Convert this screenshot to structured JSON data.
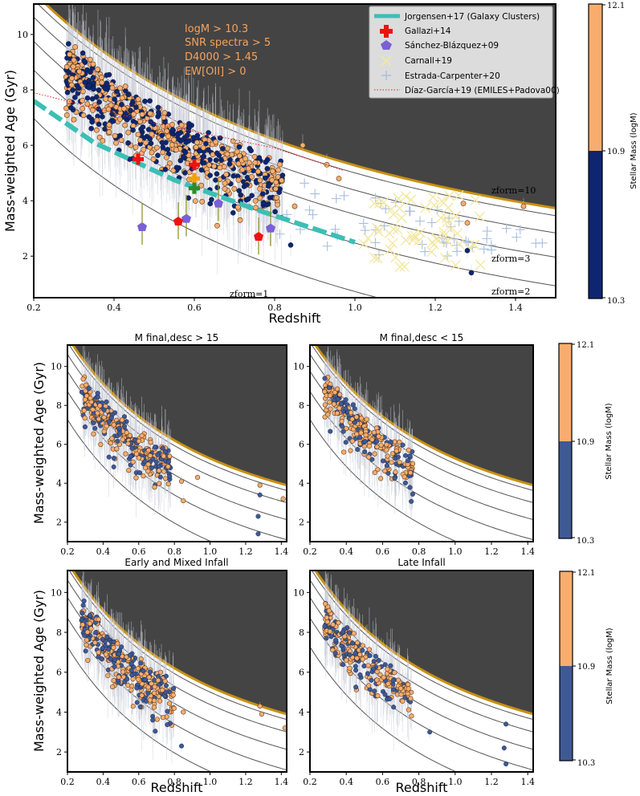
{
  "colors": {
    "high_mass": "#f8ad6e",
    "low_mass_top": "#0e2670",
    "low_mass_bottom": "#3f5994",
    "upper_region": "#444444",
    "upper_edge": "#c89010",
    "jorgensen": "#3cbfb4",
    "gallazzi": "#ee1111",
    "sanchez": "#7a5fd6",
    "carnall": "#f3e7a0",
    "estrada": "#a8bedf",
    "diaz": "#dd2222"
  },
  "chart_data": [
    {
      "id": "main",
      "type": "scatter",
      "xlabel": "Redshift",
      "ylabel": "Mass-weighted Age (Gyr)",
      "xlim": [
        0.2,
        1.5
      ],
      "ylim": [
        0.5,
        11.1
      ],
      "xticks": [
        "0.2",
        "0.4",
        "0.6",
        "0.8",
        "1.0",
        "1.2",
        "1.4"
      ],
      "yticks": [
        "2",
        "4",
        "6",
        "8",
        "10"
      ],
      "selection": [
        "logM > 10.3",
        "SNR spectra > 5",
        "D4000 > 1.45",
        "EW[OII] > 0"
      ],
      "zform_labels": [
        "zform=10",
        "zform=3",
        "zform=2",
        "zform=1"
      ],
      "legend": [
        "Jorgensen+17 (Galaxy Clusters)",
        "Gallazi+14",
        "Sánchez-Blázquez+09",
        "Carnall+19",
        "Estrada-Carpenter+20",
        "Díaz-García+19 (EMILES+Padova00)"
      ],
      "colorbar": {
        "label": "Stellar Mass (logM)",
        "ticks": [
          "12.1",
          "10.9",
          "10.3"
        ]
      },
      "gallazzi": [
        [
          0.6,
          5.3
        ],
        [
          0.6,
          4.8
        ],
        [
          0.6,
          4.45
        ],
        [
          0.46,
          5.5
        ]
      ],
      "sanchez": [
        [
          0.47,
          3.05
        ],
        [
          0.58,
          3.35
        ],
        [
          0.66,
          3.9
        ],
        [
          0.79,
          3.0
        ]
      ],
      "redpent": [
        [
          0.56,
          3.25
        ],
        [
          0.76,
          2.7
        ]
      ],
      "jorgensen_line": [
        [
          0.2,
          7.6
        ],
        [
          0.35,
          6.1
        ],
        [
          0.55,
          4.75
        ],
        [
          0.75,
          3.7
        ],
        [
          1.0,
          2.5
        ]
      ],
      "diaz_line": [
        [
          0.2,
          7.9
        ],
        [
          0.5,
          6.8
        ],
        [
          0.8,
          5.9
        ],
        [
          0.97,
          5.1
        ]
      ]
    },
    {
      "id": "mfinal_gt",
      "type": "scatter",
      "title": "M final,desc > 15",
      "xlim": [
        0.2,
        1.43
      ],
      "ylim": [
        1,
        11.1
      ],
      "xticks": [
        "0.2",
        "0.4",
        "0.6",
        "0.8",
        "1.0",
        "1.2",
        "1.4"
      ],
      "yticks": [
        "2",
        "4",
        "6",
        "8",
        "10"
      ],
      "ylabel": "Mass-weighted Age (Gyr)"
    },
    {
      "id": "mfinal_lt",
      "type": "scatter",
      "title": "M final,desc < 15",
      "xlim": [
        0.2,
        1.43
      ],
      "ylim": [
        1,
        11.1
      ],
      "xticks": [
        "0.2",
        "0.4",
        "0.6",
        "0.8",
        "1.0",
        "1.2",
        "1.4"
      ],
      "yticks": [
        "2",
        "4",
        "6",
        "8",
        "10"
      ]
    },
    {
      "id": "early",
      "type": "scatter",
      "title": "Early and Mixed Infall",
      "xlim": [
        0.2,
        1.43
      ],
      "ylim": [
        1,
        11.1
      ],
      "xticks": [
        "0.2",
        "0.4",
        "0.6",
        "0.8",
        "1.0",
        "1.2",
        "1.4"
      ],
      "yticks": [
        "2",
        "4",
        "6",
        "8",
        "10"
      ],
      "xlabel": "Redshift",
      "ylabel": "Mass-weighted Age (Gyr)"
    },
    {
      "id": "late",
      "type": "scatter",
      "title": "Late Infall",
      "xlim": [
        0.2,
        1.43
      ],
      "ylim": [
        1,
        11.1
      ],
      "xticks": [
        "0.2",
        "0.4",
        "0.6",
        "0.8",
        "1.0",
        "1.2",
        "1.4"
      ],
      "yticks": [
        "2",
        "4",
        "6",
        "8",
        "10"
      ],
      "xlabel": "Redshift"
    }
  ],
  "colorbars": [
    {
      "label": "Stellar Mass (logM)",
      "ticks": [
        "12.1",
        "10.9",
        "10.3"
      ]
    },
    {
      "label": "Stellar Mass (logM)",
      "ticks": [
        "12.1",
        "10.9",
        "10.3"
      ]
    }
  ]
}
